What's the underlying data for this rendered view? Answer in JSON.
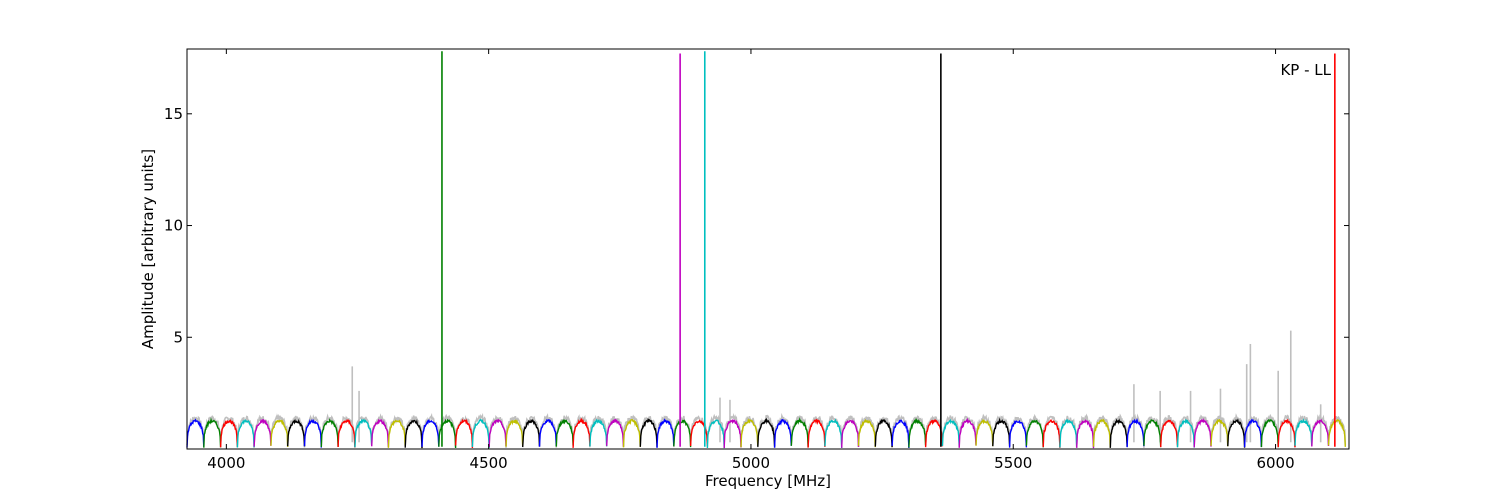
{
  "chart_data": {
    "type": "line",
    "annotation": "KP - LL",
    "xlabel": "Frequency [MHz]",
    "ylabel": "Amplitude [arbitrary units]",
    "xlim": [
      3925,
      6140
    ],
    "ylim": [
      0,
      17.9
    ],
    "xticks": [
      4000,
      4500,
      5000,
      5500,
      6000
    ],
    "yticks": [
      5,
      10,
      15
    ],
    "grid": false,
    "band_start": 3925,
    "band_width": 32,
    "band_count": 69,
    "band_colors": [
      "#0000ff",
      "#008000",
      "#ff0000",
      "#00bfbf",
      "#bf00bf",
      "#bfbf00",
      "#000000"
    ],
    "background_color": "#bfbfbf",
    "spikes": [
      {
        "x": 4240,
        "y": 3.7
      },
      {
        "x": 4253,
        "y": 2.6
      },
      {
        "x": 4941,
        "y": 2.3
      },
      {
        "x": 4960,
        "y": 2.2
      },
      {
        "x": 5730,
        "y": 2.9
      },
      {
        "x": 5780,
        "y": 2.6
      },
      {
        "x": 5838,
        "y": 2.6
      },
      {
        "x": 5895,
        "y": 2.7
      },
      {
        "x": 5952,
        "y": 4.7
      },
      {
        "x": 5945,
        "y": 3.8
      },
      {
        "x": 6005,
        "y": 3.5
      },
      {
        "x": 6029,
        "y": 5.3
      },
      {
        "x": 6086,
        "y": 2.0
      }
    ],
    "peaks": [
      {
        "x": 4411,
        "y": 17.8,
        "color": "#008000"
      },
      {
        "x": 4865,
        "y": 17.7,
        "color": "#bf00bf"
      },
      {
        "x": 4912,
        "y": 17.8,
        "color": "#00bfbf"
      },
      {
        "x": 5362,
        "y": 17.7,
        "color": "#000000"
      },
      {
        "x": 6113,
        "y": 17.7,
        "color": "#ff0000"
      }
    ]
  }
}
